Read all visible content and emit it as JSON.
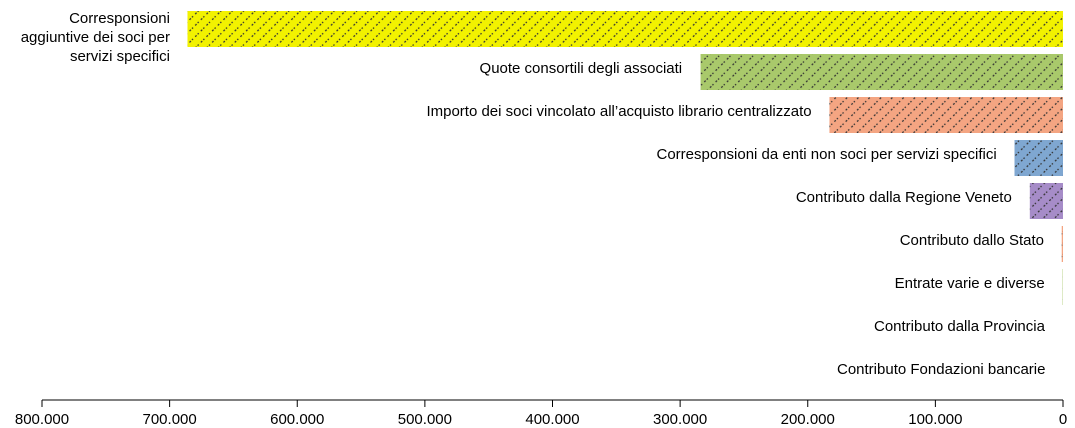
{
  "chart_data": {
    "type": "bar",
    "orientation": "horizontal",
    "x_reversed": true,
    "categories": [
      "Corresponsioni aggiuntive dei soci per servizi specifici",
      "Quote consortili degli associati",
      "Importo dei soci vincolato all’acquisto librario centralizzato",
      "Corresponsioni da enti non soci per servizi specifici",
      "Contributo dalla Regione Veneto",
      "Contributo dallo Stato",
      "Entrate varie e diverse",
      "Contributo dalla Provincia",
      "Contributo Fondazioni bancarie"
    ],
    "values": [
      686000,
      284000,
      183000,
      38000,
      26000,
      1000,
      300,
      0,
      0
    ],
    "colors": [
      "#f2f200",
      "#a9c96b",
      "#f4a582",
      "#7fa7d1",
      "#a68cc8",
      "#f4a582",
      "#a9c96b",
      "#7fa7d1",
      "#a68cc8"
    ],
    "hatch": true,
    "xlim": [
      800000,
      0
    ],
    "xticks": [
      {
        "value": 800000,
        "label": "800.000"
      },
      {
        "value": 700000,
        "label": "700.000"
      },
      {
        "value": 600000,
        "label": "600.000"
      },
      {
        "value": 500000,
        "label": "500.000"
      },
      {
        "value": 400000,
        "label": "400.000"
      },
      {
        "value": 300000,
        "label": "300.000"
      },
      {
        "value": 200000,
        "label": "200.000"
      },
      {
        "value": 100000,
        "label": "100.000"
      },
      0
    ]
  }
}
